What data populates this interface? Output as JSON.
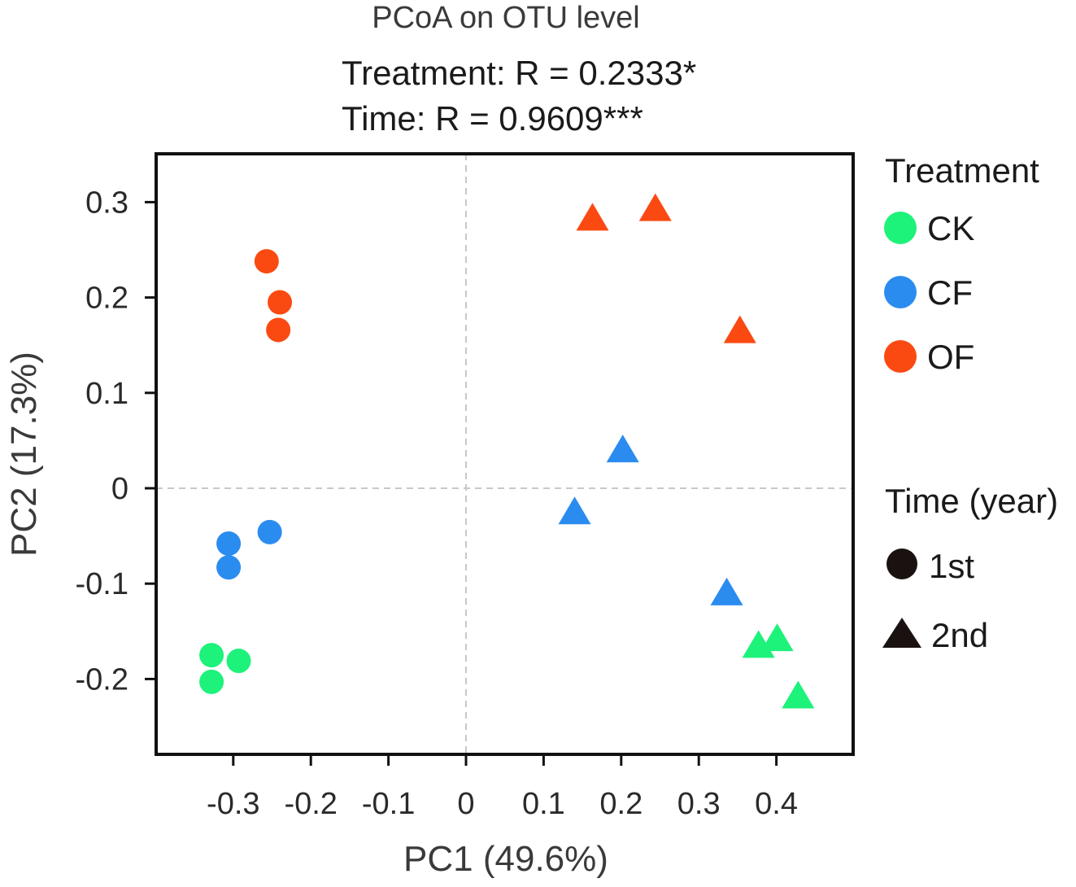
{
  "chart_data": {
    "type": "scatter",
    "title": "PCoA on OTU level",
    "subtitles": [
      "Treatment: R = 0.2333*",
      "Time: R = 0.9609***"
    ],
    "xlabel": "PC1 (49.6%)",
    "ylabel": "PC2 (17.3%)",
    "xlim": [
      -0.4,
      0.5
    ],
    "ylim": [
      -0.28,
      0.35
    ],
    "x_ticks": [
      -0.3,
      -0.2,
      -0.1,
      0,
      0.1,
      0.2,
      0.3,
      0.4
    ],
    "x_tick_labels": [
      "-0.3",
      "-0.2",
      "-0.1",
      "0",
      "0.1",
      "0.2",
      "0.3",
      "0.4"
    ],
    "y_ticks": [
      -0.2,
      -0.1,
      0,
      0.1,
      0.2,
      0.3
    ],
    "y_tick_labels": [
      "-0.2",
      "-0.1",
      "0",
      "0.1",
      "0.2",
      "0.3"
    ],
    "reference_lines": {
      "x": 0,
      "y": 0,
      "style": "dashed"
    },
    "legend_treatment": {
      "title": "Treatment",
      "items": [
        {
          "label": "CK",
          "color": "#1df27a"
        },
        {
          "label": "CF",
          "color": "#2b8cf0"
        },
        {
          "label": "OF",
          "color": "#fa4a12"
        }
      ]
    },
    "legend_time": {
      "title": "Time (year)",
      "items": [
        {
          "label": "1st",
          "shape": "circle",
          "color": "#1a1210"
        },
        {
          "label": "2nd",
          "shape": "triangle",
          "color": "#1a1210"
        }
      ]
    },
    "series": [
      {
        "treatment": "CK",
        "time": "1st",
        "points": [
          [
            -0.328,
            -0.175
          ],
          [
            -0.293,
            -0.181
          ],
          [
            -0.328,
            -0.203
          ]
        ]
      },
      {
        "treatment": "CF",
        "time": "1st",
        "points": [
          [
            -0.306,
            -0.058
          ],
          [
            -0.306,
            -0.083
          ],
          [
            -0.253,
            -0.046
          ]
        ]
      },
      {
        "treatment": "OF",
        "time": "1st",
        "points": [
          [
            -0.257,
            0.238
          ],
          [
            -0.24,
            0.195
          ],
          [
            -0.242,
            0.166
          ]
        ]
      },
      {
        "treatment": "CK",
        "time": "2nd",
        "points": [
          [
            0.377,
            -0.165
          ],
          [
            0.401,
            -0.158
          ],
          [
            0.428,
            -0.218
          ]
        ]
      },
      {
        "treatment": "CF",
        "time": "2nd",
        "points": [
          [
            0.202,
            0.04
          ],
          [
            0.14,
            -0.025
          ],
          [
            0.336,
            -0.11
          ]
        ]
      },
      {
        "treatment": "OF",
        "time": "2nd",
        "points": [
          [
            0.163,
            0.283
          ],
          [
            0.244,
            0.293
          ],
          [
            0.353,
            0.165
          ]
        ]
      }
    ]
  }
}
